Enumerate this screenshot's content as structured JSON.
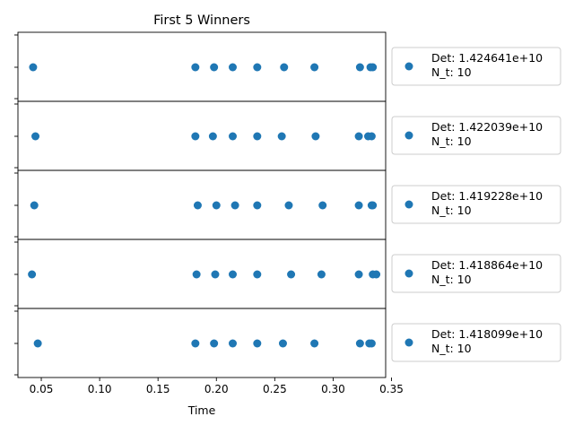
{
  "chart_data": {
    "type": "scatter",
    "title": "First 5 Winners",
    "xlabel": "Time",
    "ylabel": "",
    "xlim": [
      0.03,
      0.345
    ],
    "xticks": [
      0.05,
      0.1,
      0.15,
      0.2,
      0.25,
      0.3,
      0.35
    ],
    "xtick_labels": [
      "0.05",
      "0.10",
      "0.15",
      "0.20",
      "0.25",
      "0.30",
      "0.35"
    ],
    "marker_color": "#1f77b4",
    "legend_placement": "right",
    "subplots": [
      {
        "legend": [
          "Det: 1.424641e+10",
          "N_t: 10"
        ],
        "x": [
          0.043,
          0.182,
          0.198,
          0.214,
          0.235,
          0.258,
          0.284,
          0.323,
          0.332,
          0.334
        ]
      },
      {
        "legend": [
          "Det: 1.422039e+10",
          "N_t: 10"
        ],
        "x": [
          0.045,
          0.182,
          0.197,
          0.214,
          0.235,
          0.256,
          0.285,
          0.322,
          0.33,
          0.333
        ]
      },
      {
        "legend": [
          "Det: 1.419228e+10",
          "N_t: 10"
        ],
        "x": [
          0.044,
          0.184,
          0.2,
          0.216,
          0.235,
          0.262,
          0.291,
          0.322,
          0.333,
          0.334
        ]
      },
      {
        "legend": [
          "Det: 1.418864e+10",
          "N_t: 10"
        ],
        "x": [
          0.042,
          0.183,
          0.199,
          0.214,
          0.235,
          0.264,
          0.29,
          0.322,
          0.334,
          0.337
        ]
      },
      {
        "legend": [
          "Det: 1.418099e+10",
          "N_t: 10"
        ],
        "x": [
          0.047,
          0.182,
          0.198,
          0.214,
          0.235,
          0.257,
          0.284,
          0.323,
          0.331,
          0.333
        ]
      }
    ]
  }
}
